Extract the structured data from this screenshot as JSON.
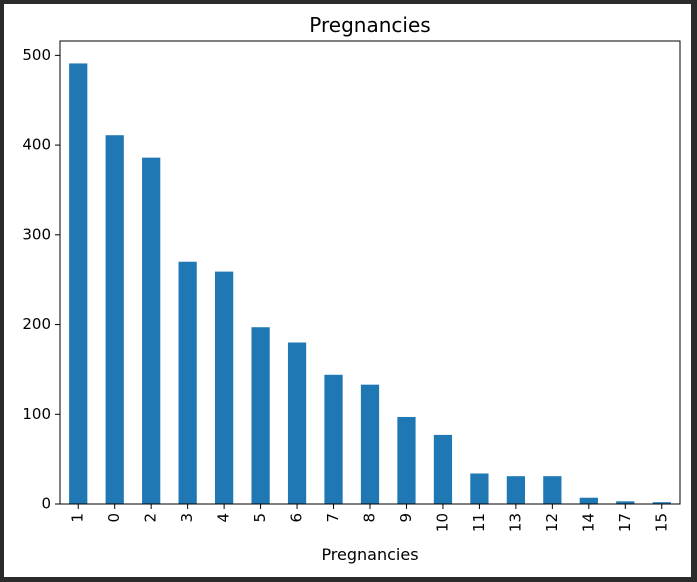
{
  "chart_data": {
    "type": "bar",
    "title": "Pregnancies",
    "xlabel": "Pregnancies",
    "ylabel": "",
    "categories": [
      "1",
      "0",
      "2",
      "3",
      "4",
      "5",
      "6",
      "7",
      "8",
      "9",
      "10",
      "11",
      "13",
      "12",
      "14",
      "17",
      "15"
    ],
    "values": [
      491,
      411,
      386,
      270,
      259,
      197,
      180,
      144,
      133,
      97,
      77,
      34,
      31,
      31,
      7,
      3,
      2
    ],
    "ylim": [
      0,
      516
    ],
    "yticks": [
      "0",
      "100",
      "200",
      "300",
      "400",
      "500"
    ],
    "grid": false,
    "legend": "none",
    "bar_color": "#1f77b4"
  }
}
